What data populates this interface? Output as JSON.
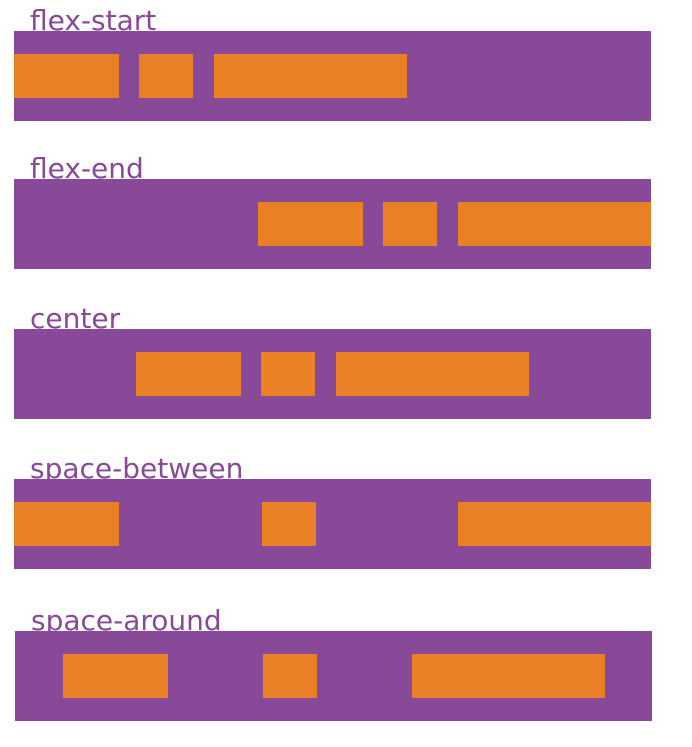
{
  "colors": {
    "container": "#874998",
    "item": "#e98026",
    "label": "#874998",
    "background": "#ffffff"
  },
  "demos": [
    {
      "label": "flex-start",
      "justify": "flex-start"
    },
    {
      "label": "flex-end",
      "justify": "flex-end"
    },
    {
      "label": "center",
      "justify": "center"
    },
    {
      "label": "space-between",
      "justify": "space-between"
    },
    {
      "label": "space-around",
      "justify": "space-around"
    }
  ]
}
